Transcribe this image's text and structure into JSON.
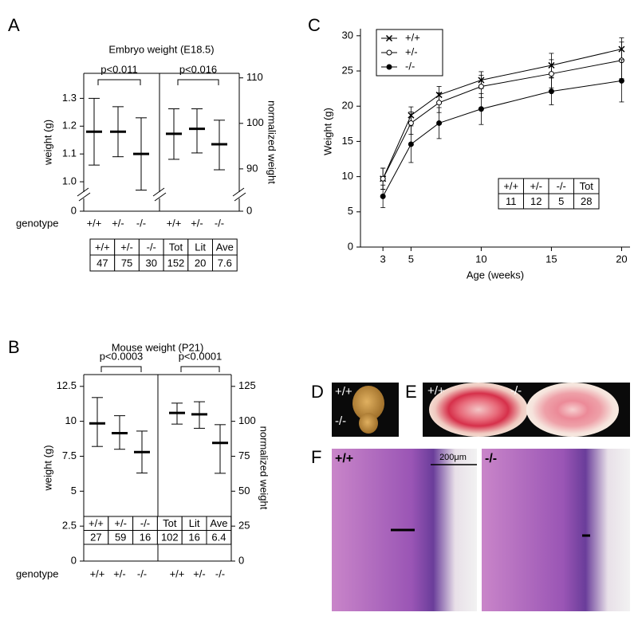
{
  "panel_labels": [
    "A",
    "B",
    "C",
    "D",
    "E",
    "F"
  ],
  "images": {
    "D": {
      "labels": [
        "+/+",
        "-/-"
      ]
    },
    "E": {
      "labels": [
        "+/+",
        "-/-"
      ]
    },
    "F": {
      "labels": [
        "+/+",
        "-/-"
      ],
      "scale_bar": "200μm"
    }
  },
  "chart_data": [
    {
      "type": "errorbar",
      "title": "Embryo weight (E18.5)",
      "y_label": "weight (g)",
      "y2_label": "normalized weight",
      "x_label": "genotype",
      "categories": [
        "+/+",
        "+/-",
        "-/-",
        "+/+",
        "+/-",
        "-/-"
      ],
      "series": [
        {
          "axis": "y",
          "color": "#000000",
          "values": [
            1.18,
            1.18,
            1.1,
            null,
            null,
            null
          ],
          "upper": [
            1.3,
            1.27,
            1.23,
            null,
            null,
            null
          ],
          "lower": [
            1.06,
            1.09,
            0.97,
            null,
            null,
            null
          ]
        },
        {
          "axis": "y2",
          "color": "#000000",
          "values": [
            null,
            null,
            null,
            97.7,
            98.8,
            95.4
          ],
          "upper": [
            null,
            null,
            null,
            103.2,
            103.2,
            100.7
          ],
          "lower": [
            null,
            null,
            null,
            92.1,
            93.5,
            89.8
          ]
        }
      ],
      "ylim": [
        0.94,
        1.39
      ],
      "yticks": [
        0,
        {
          "value": 1.0,
          "label": "1.0"
        },
        1.1,
        1.2,
        1.3
      ],
      "y2lim": [
        83.5,
        111
      ],
      "y2ticks": [
        0,
        90,
        100,
        110
      ],
      "axis_break": true,
      "annotations": [
        "p<0.011",
        "p<0.016"
      ],
      "table": [
        [
          "+/+",
          "+/-",
          "-/-",
          "Tot",
          "Lit",
          "Ave"
        ],
        [
          47,
          75,
          30,
          152,
          20,
          7.6
        ]
      ]
    },
    {
      "type": "errorbar",
      "title": "Mouse weight (P21)",
      "y_label": "weight (g)",
      "y2_label": "normalized weight",
      "x_label": "genotype",
      "categories": [
        "+/+",
        "+/-",
        "-/-",
        "+/+",
        "+/-",
        "-/-"
      ],
      "series": [
        {
          "axis": "y",
          "color": "#000000",
          "values": [
            9.85,
            9.15,
            7.8,
            null,
            null,
            null
          ],
          "upper": [
            11.7,
            10.4,
            9.3,
            null,
            null,
            null
          ],
          "lower": [
            8.2,
            8.0,
            6.3,
            null,
            null,
            null
          ]
        },
        {
          "axis": "y2",
          "color": "#000000",
          "values": [
            null,
            null,
            null,
            106,
            105,
            84.5
          ],
          "upper": [
            null,
            null,
            null,
            113,
            114,
            97.6
          ],
          "lower": [
            null,
            null,
            null,
            98,
            95,
            62.8
          ]
        }
      ],
      "ylim": [
        0,
        13.4
      ],
      "yticks": [
        0,
        2.5,
        5,
        7.5,
        10,
        12.5
      ],
      "y2lim": [
        0,
        134
      ],
      "y2ticks": [
        0,
        25,
        50,
        75,
        100,
        125
      ],
      "axis_break": false,
      "annotations": [
        "p<0.0003",
        "p<0.0001"
      ],
      "table": [
        [
          "+/+",
          "+/-",
          "-/-",
          "Tot",
          "Lit",
          "Ave"
        ],
        [
          27,
          59,
          16,
          102,
          16,
          6.4
        ]
      ]
    },
    {
      "type": "line",
      "x_label": "Age (weeks)",
      "y_label": "Weight (g)",
      "x": [
        3,
        5,
        7,
        10,
        15,
        20
      ],
      "series": [
        {
          "name": "+/+",
          "color": "#000000",
          "marker": "x",
          "values": [
            9.7,
            18.7,
            21.6,
            23.7,
            25.8,
            28.1
          ],
          "errors": [
            1.5,
            1.2,
            1.2,
            1.2,
            1.7,
            1.6
          ]
        },
        {
          "name": "+/-",
          "color": "#000000",
          "marker": "open",
          "values": [
            9.7,
            17.6,
            20.5,
            22.8,
            24.6,
            26.5
          ],
          "errors": [
            1.5,
            1.6,
            1.4,
            1.6,
            2.0,
            2.6
          ]
        },
        {
          "name": "-/-",
          "color": "#000000",
          "marker": "filled",
          "values": [
            7.2,
            14.6,
            17.6,
            19.6,
            22.1,
            23.6
          ],
          "errors": [
            1.6,
            2.6,
            2.2,
            2.2,
            1.9,
            3.0
          ]
        }
      ],
      "xlim": [
        1.4,
        20.6
      ],
      "xticks": [
        3,
        5,
        10,
        15,
        20
      ],
      "ylim": [
        0,
        31
      ],
      "yticks": [
        0,
        5,
        10,
        15,
        20,
        25,
        30
      ],
      "table": [
        [
          "+/+",
          "+/-",
          "-/-",
          "Tot"
        ],
        [
          11,
          12,
          5,
          28
        ]
      ]
    }
  ]
}
